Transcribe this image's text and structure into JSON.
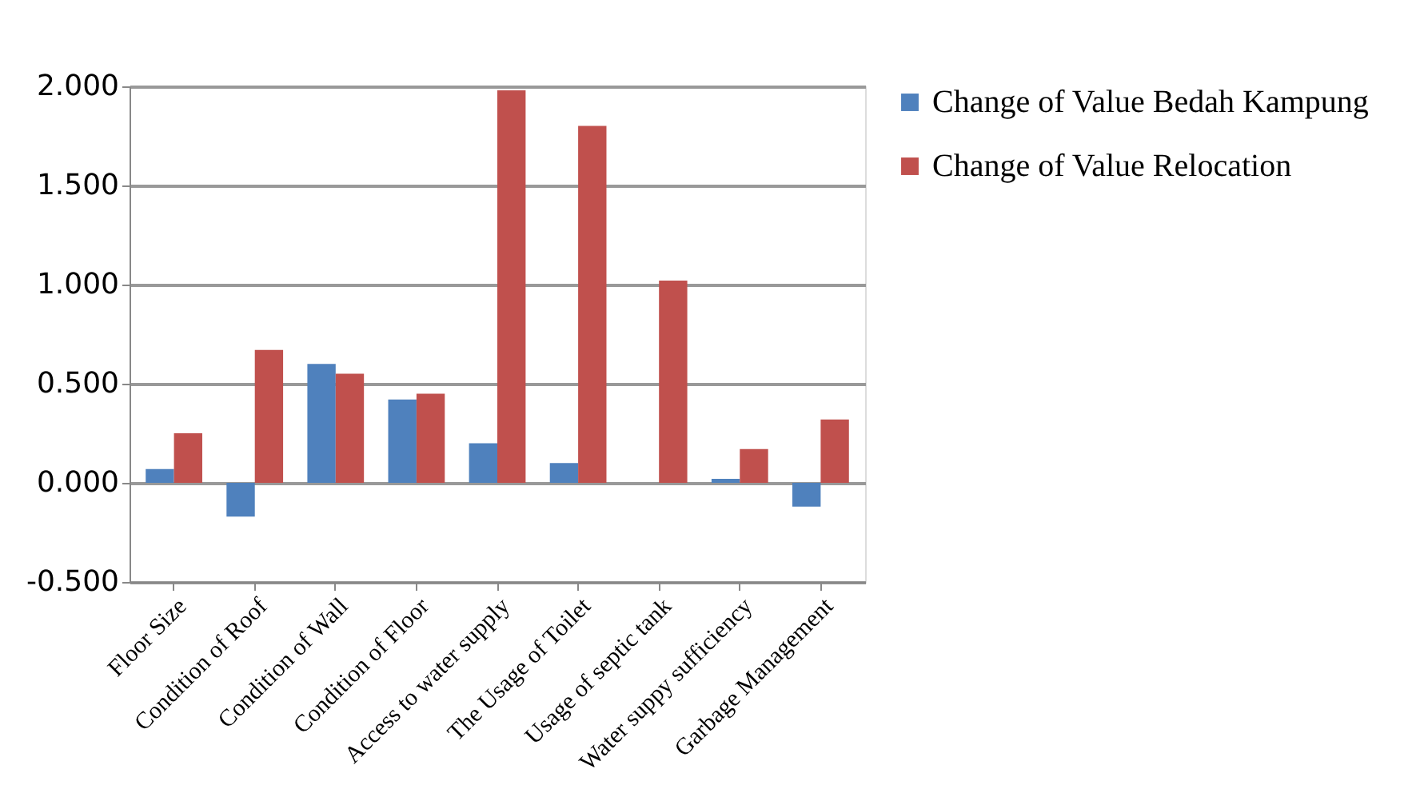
{
  "chart_data": {
    "type": "bar",
    "categories": [
      "Floor Size",
      "Condition of Roof",
      "Condition of Wall",
      "Condition of Floor",
      "Access to water supply",
      "The Usage of Toilet",
      "Usage of septic tank",
      "Water suppy sufficiency",
      "Garbage Management"
    ],
    "series": [
      {
        "name": "Change of Value Bedah Kampung",
        "color": "#4f81bd",
        "values": [
          0.07,
          -0.17,
          0.6,
          0.42,
          0.2,
          0.1,
          0,
          0.02,
          -0.12
        ]
      },
      {
        "name": "Change of Value Relocation",
        "color": "#c0504d",
        "values": [
          0.25,
          0.67,
          0.55,
          0.45,
          1.98,
          1.8,
          1.02,
          0.17,
          0.32
        ]
      }
    ],
    "ylim": [
      -0.5,
      2.0
    ],
    "yticks": [
      {
        "value": -0.5,
        "label": "-0.500"
      },
      {
        "value": 0,
        "label": "0.000"
      },
      {
        "value": 0.5,
        "label": "0.500"
      },
      {
        "value": 1.0,
        "label": "1.000"
      },
      {
        "value": 1.5,
        "label": "1.500"
      },
      {
        "value": 2.0,
        "label": "2.000"
      }
    ],
    "grid": "y",
    "legend": "right"
  }
}
